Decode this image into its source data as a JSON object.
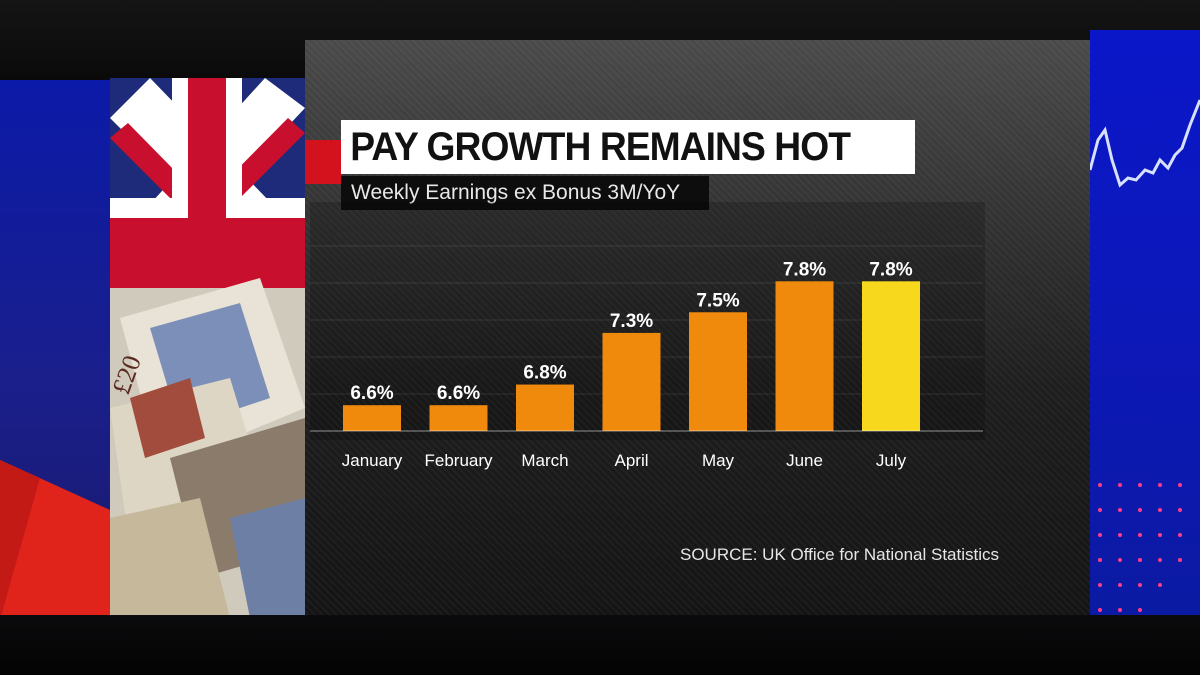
{
  "chart_data": {
    "type": "bar",
    "title": "PAY GROWTH REMAINS HOT",
    "subtitle": "Weekly Earnings ex Bonus 3M/YoY",
    "categories": [
      "January",
      "February",
      "March",
      "April",
      "May",
      "June",
      "July"
    ],
    "values": [
      6.6,
      6.6,
      6.8,
      7.3,
      7.5,
      7.8,
      7.8
    ],
    "data_labels": [
      "6.6%",
      "6.6%",
      "6.8%",
      "7.3%",
      "7.5%",
      "7.8%",
      "7.8%"
    ],
    "ylim": [
      6.35,
      8.2
    ],
    "grid": true,
    "highlight_index": 6,
    "colors": {
      "bar": "#f08a0c",
      "bar_highlight": "#f7d81c",
      "accent": "#d3121e"
    }
  },
  "source": "SOURCE: UK Office for National Statistics",
  "decor": {
    "flag_icon": "uk-flag",
    "banknote_text": "£20"
  }
}
